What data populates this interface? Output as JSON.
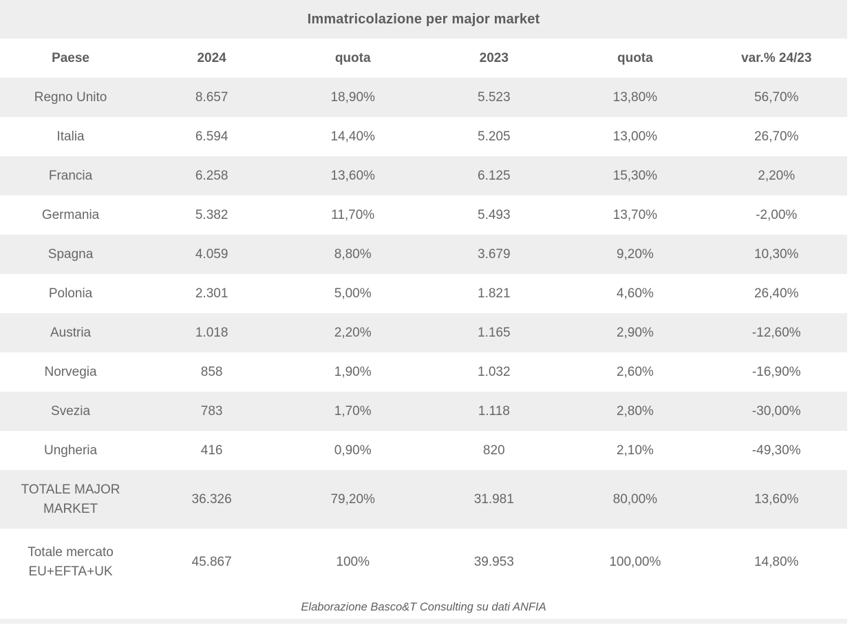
{
  "table": {
    "title": "Immatricolazione per major market",
    "columns": [
      "Paese",
      "2024",
      "quota",
      "2023",
      "quota",
      "var.% 24/23"
    ],
    "rows": [
      {
        "cells": [
          "Regno Unito",
          "8.657",
          "18,90%",
          "5.523",
          "13,80%",
          "56,70%"
        ]
      },
      {
        "cells": [
          "Italia",
          "6.594",
          "14,40%",
          "5.205",
          "13,00%",
          "26,70%"
        ]
      },
      {
        "cells": [
          "Francia",
          "6.258",
          "13,60%",
          "6.125",
          "15,30%",
          "2,20%"
        ]
      },
      {
        "cells": [
          "Germania",
          "5.382",
          "11,70%",
          "5.493",
          "13,70%",
          "-2,00%"
        ]
      },
      {
        "cells": [
          "Spagna",
          "4.059",
          "8,80%",
          "3.679",
          "9,20%",
          "10,30%"
        ]
      },
      {
        "cells": [
          "Polonia",
          "2.301",
          "5,00%",
          "1.821",
          "4,60%",
          "26,40%"
        ]
      },
      {
        "cells": [
          "Austria",
          "1.018",
          "2,20%",
          "1.165",
          "2,90%",
          "-12,60%"
        ]
      },
      {
        "cells": [
          "Norvegia",
          "858",
          "1,90%",
          "1.032",
          "2,60%",
          "-16,90%"
        ]
      },
      {
        "cells": [
          "Svezia",
          "783",
          "1,70%",
          "1.118",
          "2,80%",
          "-30,00%"
        ]
      },
      {
        "cells": [
          "Ungheria",
          "416",
          "0,90%",
          "820",
          "2,10%",
          "-49,30%"
        ]
      },
      {
        "cells": [
          "TOTALE MAJOR MARKET",
          "36.326",
          "79,20%",
          "31.981",
          "80,00%",
          "13,60%"
        ]
      },
      {
        "cells": [
          "Totale mercato EU+EFTA+UK",
          "45.867",
          "100%",
          "39.953",
          "100,00%",
          "14,80%"
        ]
      }
    ],
    "footer": "Elaborazione Basco&T Consulting su dati ANFIA"
  },
  "colors": {
    "row_shade": "#eeeeee",
    "text": "#666666",
    "header_text": "#5d5d5d",
    "bottom_strip": "#f0f0f0",
    "background": "#ffffff"
  },
  "chart_data": {
    "type": "table",
    "title": "Immatricolazione per major market",
    "columns": [
      "Paese",
      "2024",
      "quota",
      "2023",
      "quota",
      "var.% 24/23"
    ],
    "rows": [
      [
        "Regno Unito",
        "8.657",
        "18,90%",
        "5.523",
        "13,80%",
        "56,70%"
      ],
      [
        "Italia",
        "6.594",
        "14,40%",
        "5.205",
        "13,00%",
        "26,70%"
      ],
      [
        "Francia",
        "6.258",
        "13,60%",
        "6.125",
        "15,30%",
        "2,20%"
      ],
      [
        "Germania",
        "5.382",
        "11,70%",
        "5.493",
        "13,70%",
        "-2,00%"
      ],
      [
        "Spagna",
        "4.059",
        "8,80%",
        "3.679",
        "9,20%",
        "10,30%"
      ],
      [
        "Polonia",
        "2.301",
        "5,00%",
        "1.821",
        "4,60%",
        "26,40%"
      ],
      [
        "Austria",
        "1.018",
        "2,20%",
        "1.165",
        "2,90%",
        "-12,60%"
      ],
      [
        "Norvegia",
        "858",
        "1,90%",
        "1.032",
        "2,60%",
        "-16,90%"
      ],
      [
        "Svezia",
        "783",
        "1,70%",
        "1.118",
        "2,80%",
        "-30,00%"
      ],
      [
        "Ungheria",
        "416",
        "0,90%",
        "820",
        "2,10%",
        "-49,30%"
      ],
      [
        "TOTALE MAJOR MARKET",
        "36.326",
        "79,20%",
        "31.981",
        "80,00%",
        "13,60%"
      ],
      [
        "Totale mercato EU+EFTA+UK",
        "45.867",
        "100%",
        "39.953",
        "100,00%",
        "14,80%"
      ]
    ],
    "source_note": "Elaborazione Basco&T Consulting su dati ANFIA",
    "layout": {
      "striped": true,
      "stripe_start": "first-data-row",
      "alignment": "center"
    }
  }
}
